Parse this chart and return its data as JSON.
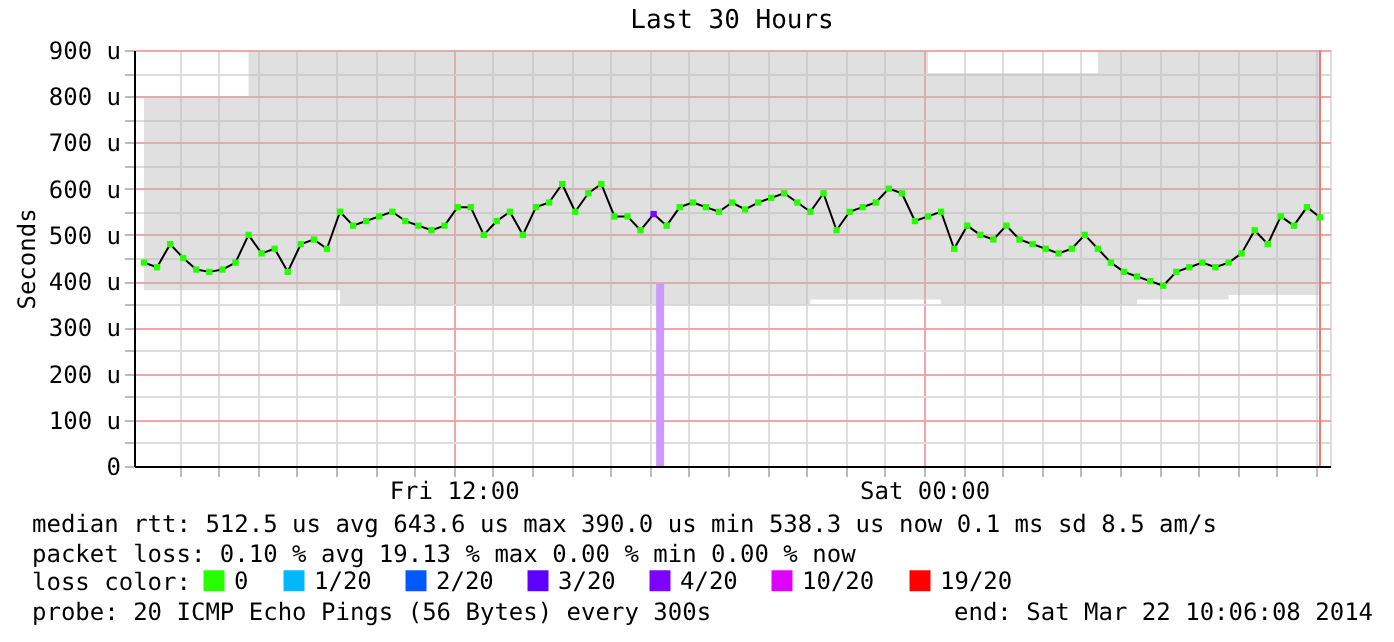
{
  "chart_data": {
    "type": "line",
    "title": "Last 30 Hours",
    "ylabel": "Seconds",
    "x": [
      "2014-03-21T04:06",
      "2014-03-21T04:26",
      "2014-03-21T04:46",
      "2014-03-21T05:06",
      "2014-03-21T05:26",
      "2014-03-21T05:46",
      "2014-03-21T06:06",
      "2014-03-21T06:26",
      "2014-03-21T06:46",
      "2014-03-21T07:06",
      "2014-03-21T07:26",
      "2014-03-21T07:46",
      "2014-03-21T08:06",
      "2014-03-21T08:26",
      "2014-03-21T08:46",
      "2014-03-21T09:06",
      "2014-03-21T09:26",
      "2014-03-21T09:46",
      "2014-03-21T10:06",
      "2014-03-21T10:26",
      "2014-03-21T10:46",
      "2014-03-21T11:06",
      "2014-03-21T11:26",
      "2014-03-21T11:46",
      "2014-03-21T12:06",
      "2014-03-21T12:26",
      "2014-03-21T12:46",
      "2014-03-21T13:06",
      "2014-03-21T13:26",
      "2014-03-21T13:46",
      "2014-03-21T14:06",
      "2014-03-21T14:26",
      "2014-03-21T14:46",
      "2014-03-21T15:06",
      "2014-03-21T15:26",
      "2014-03-21T15:46",
      "2014-03-21T16:06",
      "2014-03-21T16:26",
      "2014-03-21T16:46",
      "2014-03-21T17:06",
      "2014-03-21T17:26",
      "2014-03-21T17:46",
      "2014-03-21T18:06",
      "2014-03-21T18:26",
      "2014-03-21T18:46",
      "2014-03-21T19:06",
      "2014-03-21T19:26",
      "2014-03-21T19:46",
      "2014-03-21T20:06",
      "2014-03-21T20:26",
      "2014-03-21T20:46",
      "2014-03-21T21:06",
      "2014-03-21T21:26",
      "2014-03-21T21:46",
      "2014-03-21T22:06",
      "2014-03-21T22:26",
      "2014-03-21T22:46",
      "2014-03-21T23:06",
      "2014-03-21T23:26",
      "2014-03-21T23:46",
      "2014-03-22T00:06",
      "2014-03-22T00:26",
      "2014-03-22T00:46",
      "2014-03-22T01:06",
      "2014-03-22T01:26",
      "2014-03-22T01:46",
      "2014-03-22T02:06",
      "2014-03-22T02:26",
      "2014-03-22T02:46",
      "2014-03-22T03:06",
      "2014-03-22T03:26",
      "2014-03-22T03:46",
      "2014-03-22T04:06",
      "2014-03-22T04:26",
      "2014-03-22T04:46",
      "2014-03-22T05:06",
      "2014-03-22T05:26",
      "2014-03-22T05:46",
      "2014-03-22T06:06",
      "2014-03-22T06:26",
      "2014-03-22T06:46",
      "2014-03-22T07:06",
      "2014-03-22T07:26",
      "2014-03-22T07:46",
      "2014-03-22T08:06",
      "2014-03-22T08:26",
      "2014-03-22T08:46",
      "2014-03-22T09:06",
      "2014-03-22T09:26",
      "2014-03-22T09:46",
      "2014-03-22T10:06"
    ],
    "xlim": [
      "2014-03-21T04:06",
      "2014-03-22T10:06"
    ],
    "xticks": [
      {
        "value": "2014-03-21T05:00",
        "label": null
      },
      {
        "value": "2014-03-21T06:00",
        "label": null
      },
      {
        "value": "2014-03-21T07:00",
        "label": null
      },
      {
        "value": "2014-03-21T08:00",
        "label": null
      },
      {
        "value": "2014-03-21T09:00",
        "label": null
      },
      {
        "value": "2014-03-21T10:00",
        "label": null
      },
      {
        "value": "2014-03-21T11:00",
        "label": null
      },
      {
        "value": "2014-03-21T12:00",
        "label": "Fri 12:00"
      },
      {
        "value": "2014-03-21T13:00",
        "label": null
      },
      {
        "value": "2014-03-21T14:00",
        "label": null
      },
      {
        "value": "2014-03-21T15:00",
        "label": null
      },
      {
        "value": "2014-03-21T16:00",
        "label": null
      },
      {
        "value": "2014-03-21T17:00",
        "label": null
      },
      {
        "value": "2014-03-21T18:00",
        "label": null
      },
      {
        "value": "2014-03-21T19:00",
        "label": null
      },
      {
        "value": "2014-03-21T20:00",
        "label": null
      },
      {
        "value": "2014-03-21T21:00",
        "label": null
      },
      {
        "value": "2014-03-21T22:00",
        "label": null
      },
      {
        "value": "2014-03-21T23:00",
        "label": null
      },
      {
        "value": "2014-03-22T00:00",
        "label": "Sat 00:00"
      },
      {
        "value": "2014-03-22T01:00",
        "label": null
      },
      {
        "value": "2014-03-22T02:00",
        "label": null
      },
      {
        "value": "2014-03-22T03:00",
        "label": null
      },
      {
        "value": "2014-03-22T04:00",
        "label": null
      },
      {
        "value": "2014-03-22T05:00",
        "label": null
      },
      {
        "value": "2014-03-22T06:00",
        "label": null
      },
      {
        "value": "2014-03-22T07:00",
        "label": null
      },
      {
        "value": "2014-03-22T08:00",
        "label": null
      },
      {
        "value": "2014-03-22T09:00",
        "label": null
      },
      {
        "value": "2014-03-22T10:00",
        "label": null
      }
    ],
    "ylim": [
      0,
      900
    ],
    "yticks": [
      0,
      {
        "value": 50,
        "label": null
      },
      {
        "value": 100,
        "label": "100 u"
      },
      {
        "value": 150,
        "label": null
      },
      {
        "value": 200,
        "label": "200 u"
      },
      {
        "value": 250,
        "label": null
      },
      {
        "value": 300,
        "label": "300 u"
      },
      {
        "value": 350,
        "label": null
      },
      {
        "value": 400,
        "label": "400 u"
      },
      {
        "value": 450,
        "label": null
      },
      {
        "value": 500,
        "label": "500 u"
      },
      {
        "value": 550,
        "label": null
      },
      {
        "value": 600,
        "label": "600 u"
      },
      {
        "value": 650,
        "label": null
      },
      {
        "value": 700,
        "label": "700 u"
      },
      {
        "value": 750,
        "label": null
      },
      {
        "value": 800,
        "label": "800 u"
      },
      {
        "value": 850,
        "label": null
      },
      {
        "value": 900,
        "label": "900 u"
      }
    ],
    "grid": true,
    "legend": "bottom",
    "legend_title": "loss color:",
    "ref_lines": [
      {
        "axis": "x",
        "value": "2014-03-22T10:06",
        "color": "#ee7777"
      }
    ],
    "annotations": [
      "median rtt:  512.5 us avg  643.6 us max  390.0 us min  538.3 us now  0.1 ms sd  8.5   am/s",
      "packet loss: 0.10 % avg  19.13 % max  0.00 % min  0.00 % now",
      "probe:       20 ICMP Echo Pings (56 Bytes) every 300s",
      "end: Sat Mar 22 10:06:08 2014"
    ],
    "series": [
      {
        "color": "#000000",
        "values": [
          440,
          430,
          480,
          450,
          425,
          420,
          425,
          440,
          500,
          460,
          470,
          420,
          480,
          490,
          470,
          550,
          520,
          530,
          540,
          550,
          530,
          520,
          510,
          520,
          560,
          560,
          500,
          530,
          550,
          500,
          560,
          570,
          610,
          550,
          590,
          610,
          540,
          540,
          510,
          545,
          520,
          560,
          570,
          560,
          550,
          570,
          555,
          570,
          580,
          590,
          570,
          550,
          590,
          510,
          550,
          560,
          570,
          600,
          590,
          530,
          540,
          550,
          470,
          520,
          500,
          490,
          520,
          490,
          480,
          470,
          460,
          470,
          500,
          470,
          440,
          420,
          410,
          400,
          390,
          420,
          430,
          440,
          430,
          440,
          460,
          510,
          480,
          540,
          520,
          560,
          538
        ],
        "lower": [
          380,
          380,
          380,
          380,
          380,
          380,
          380,
          380,
          380,
          380,
          380,
          380,
          380,
          380,
          380,
          350,
          350,
          350,
          350,
          350,
          350,
          350,
          350,
          350,
          350,
          350,
          350,
          350,
          350,
          350,
          350,
          350,
          350,
          350,
          350,
          350,
          350,
          350,
          350,
          350,
          350,
          350,
          350,
          350,
          350,
          350,
          350,
          350,
          350,
          350,
          350,
          360,
          360,
          360,
          360,
          360,
          360,
          360,
          360,
          360,
          360,
          350,
          350,
          350,
          350,
          350,
          350,
          350,
          350,
          350,
          350,
          350,
          350,
          350,
          350,
          350,
          360,
          360,
          360,
          360,
          360,
          360,
          360,
          370,
          370,
          370,
          370,
          370,
          370,
          370,
          370
        ],
        "upper": [
          800,
          800,
          800,
          800,
          800,
          800,
          800,
          800,
          900,
          900,
          900,
          900,
          900,
          900,
          900,
          900,
          900,
          900,
          900,
          900,
          900,
          900,
          900,
          900,
          900,
          900,
          900,
          900,
          900,
          900,
          900,
          900,
          900,
          900,
          900,
          900,
          900,
          900,
          900,
          900,
          900,
          900,
          900,
          900,
          900,
          900,
          900,
          900,
          900,
          900,
          900,
          900,
          900,
          900,
          900,
          900,
          900,
          900,
          900,
          900,
          850,
          850,
          850,
          850,
          850,
          850,
          850,
          850,
          850,
          850,
          850,
          850,
          850,
          900,
          900,
          900,
          900,
          900,
          900,
          900,
          900,
          900,
          900,
          900,
          900,
          900,
          900,
          900,
          900,
          900,
          900
        ]
      },
      {
        "type": "bar",
        "color": "#cc99ff",
        "x": [
          "2014-03-21T17:16"
        ],
        "values": [
          395
        ]
      },
      {
        "type": "scatter",
        "name": "0",
        "color": "#26ff00",
        "marker": "square",
        "values": [
          440,
          430,
          480,
          450,
          425,
          420,
          425,
          440,
          500,
          460,
          470,
          420,
          480,
          490,
          470,
          550,
          520,
          530,
          540,
          550,
          530,
          520,
          510,
          520,
          560,
          560,
          500,
          530,
          550,
          500,
          560,
          570,
          610,
          550,
          590,
          610,
          540,
          540,
          510,
          null,
          520,
          560,
          570,
          560,
          550,
          570,
          555,
          570,
          580,
          590,
          570,
          550,
          590,
          510,
          550,
          560,
          570,
          600,
          590,
          530,
          540,
          550,
          470,
          520,
          500,
          490,
          520,
          490,
          480,
          470,
          460,
          470,
          500,
          470,
          440,
          420,
          410,
          400,
          390,
          420,
          430,
          440,
          430,
          440,
          460,
          510,
          480,
          540,
          520,
          560,
          538
        ]
      },
      {
        "type": "scatter",
        "name": "1/20",
        "color": "#00b8ff",
        "marker": "square",
        "values": [
          null,
          null,
          null,
          null,
          null,
          null,
          null,
          null,
          null,
          null,
          null,
          null,
          null,
          null,
          null,
          null,
          null,
          null,
          null,
          null,
          null,
          null,
          null,
          null,
          null,
          null,
          null,
          null,
          null,
          null,
          null,
          null,
          null,
          null,
          null,
          null,
          null,
          null,
          null,
          null,
          null,
          null,
          null,
          null,
          null,
          null,
          null,
          null,
          null,
          null,
          null,
          null,
          null,
          null,
          null,
          null,
          null,
          null,
          null,
          null,
          null,
          null,
          null,
          null,
          null,
          null,
          null,
          null,
          null,
          null,
          null,
          null,
          null,
          null,
          null,
          null,
          null,
          null,
          null,
          null,
          null,
          null,
          null,
          null,
          null,
          null,
          null,
          null,
          null,
          null,
          null
        ]
      },
      {
        "type": "scatter",
        "name": "2/20",
        "color": "#0059ff",
        "marker": "square",
        "values": [
          null,
          null,
          null,
          null,
          null,
          null,
          null,
          null,
          null,
          null,
          null,
          null,
          null,
          null,
          null,
          null,
          null,
          null,
          null,
          null,
          null,
          null,
          null,
          null,
          null,
          null,
          null,
          null,
          null,
          null,
          null,
          null,
          null,
          null,
          null,
          null,
          null,
          null,
          null,
          null,
          null,
          null,
          null,
          null,
          null,
          null,
          null,
          null,
          null,
          null,
          null,
          null,
          null,
          null,
          null,
          null,
          null,
          null,
          null,
          null,
          null,
          null,
          null,
          null,
          null,
          null,
          null,
          null,
          null,
          null,
          null,
          null,
          null,
          null,
          null,
          null,
          null,
          null,
          null,
          null,
          null,
          null,
          null,
          null,
          null,
          null,
          null,
          null,
          null,
          null,
          null
        ]
      },
      {
        "type": "scatter",
        "name": "3/20",
        "color": "#5e00ff",
        "marker": "square",
        "values": [
          null,
          null,
          null,
          null,
          null,
          null,
          null,
          null,
          null,
          null,
          null,
          null,
          null,
          null,
          null,
          null,
          null,
          null,
          null,
          null,
          null,
          null,
          null,
          null,
          null,
          null,
          null,
          null,
          null,
          null,
          null,
          null,
          null,
          null,
          null,
          null,
          null,
          null,
          null,
          null,
          null,
          null,
          null,
          null,
          null,
          null,
          null,
          null,
          null,
          null,
          null,
          null,
          null,
          null,
          null,
          null,
          null,
          null,
          null,
          null,
          null,
          null,
          null,
          null,
          null,
          null,
          null,
          null,
          null,
          null,
          null,
          null,
          null,
          null,
          null,
          null,
          null,
          null,
          null,
          null,
          null,
          null,
          null,
          null,
          null,
          null,
          null,
          null,
          null,
          null,
          null
        ]
      },
      {
        "type": "scatter",
        "name": "4/20",
        "color": "#7e00ff",
        "marker": "square",
        "x": [
          "2014-03-21T17:06"
        ],
        "values": [
          545
        ]
      },
      {
        "type": "scatter",
        "name": "10/20",
        "color": "#dd00ff",
        "marker": "square",
        "values": [
          null,
          null,
          null,
          null,
          null,
          null,
          null,
          null,
          null,
          null,
          null,
          null,
          null,
          null,
          null,
          null,
          null,
          null,
          null,
          null,
          null,
          null,
          null,
          null,
          null,
          null,
          null,
          null,
          null,
          null,
          null,
          null,
          null,
          null,
          null,
          null,
          null,
          null,
          null,
          null,
          null,
          null,
          null,
          null,
          null,
          null,
          null,
          null,
          null,
          null,
          null,
          null,
          null,
          null,
          null,
          null,
          null,
          null,
          null,
          null,
          null,
          null,
          null,
          null,
          null,
          null,
          null,
          null,
          null,
          null,
          null,
          null,
          null,
          null,
          null,
          null,
          null,
          null,
          null,
          null,
          null,
          null,
          null,
          null,
          null,
          null,
          null,
          null,
          null,
          null,
          null
        ]
      },
      {
        "type": "scatter",
        "name": "19/20",
        "color": "#ff0000",
        "marker": "square",
        "values": [
          null,
          null,
          null,
          null,
          null,
          null,
          null,
          null,
          null,
          null,
          null,
          null,
          null,
          null,
          null,
          null,
          null,
          null,
          null,
          null,
          null,
          null,
          null,
          null,
          null,
          null,
          null,
          null,
          null,
          null,
          null,
          null,
          null,
          null,
          null,
          null,
          null,
          null,
          null,
          null,
          null,
          null,
          null,
          null,
          null,
          null,
          null,
          null,
          null,
          null,
          null,
          null,
          null,
          null,
          null,
          null,
          null,
          null,
          null,
          null,
          null,
          null,
          null,
          null,
          null,
          null,
          null,
          null,
          null,
          null,
          null,
          null,
          null,
          null,
          null,
          null,
          null,
          null,
          null,
          null,
          null,
          null,
          null,
          null,
          null,
          null,
          null,
          null,
          null,
          null,
          null
        ]
      }
    ]
  }
}
